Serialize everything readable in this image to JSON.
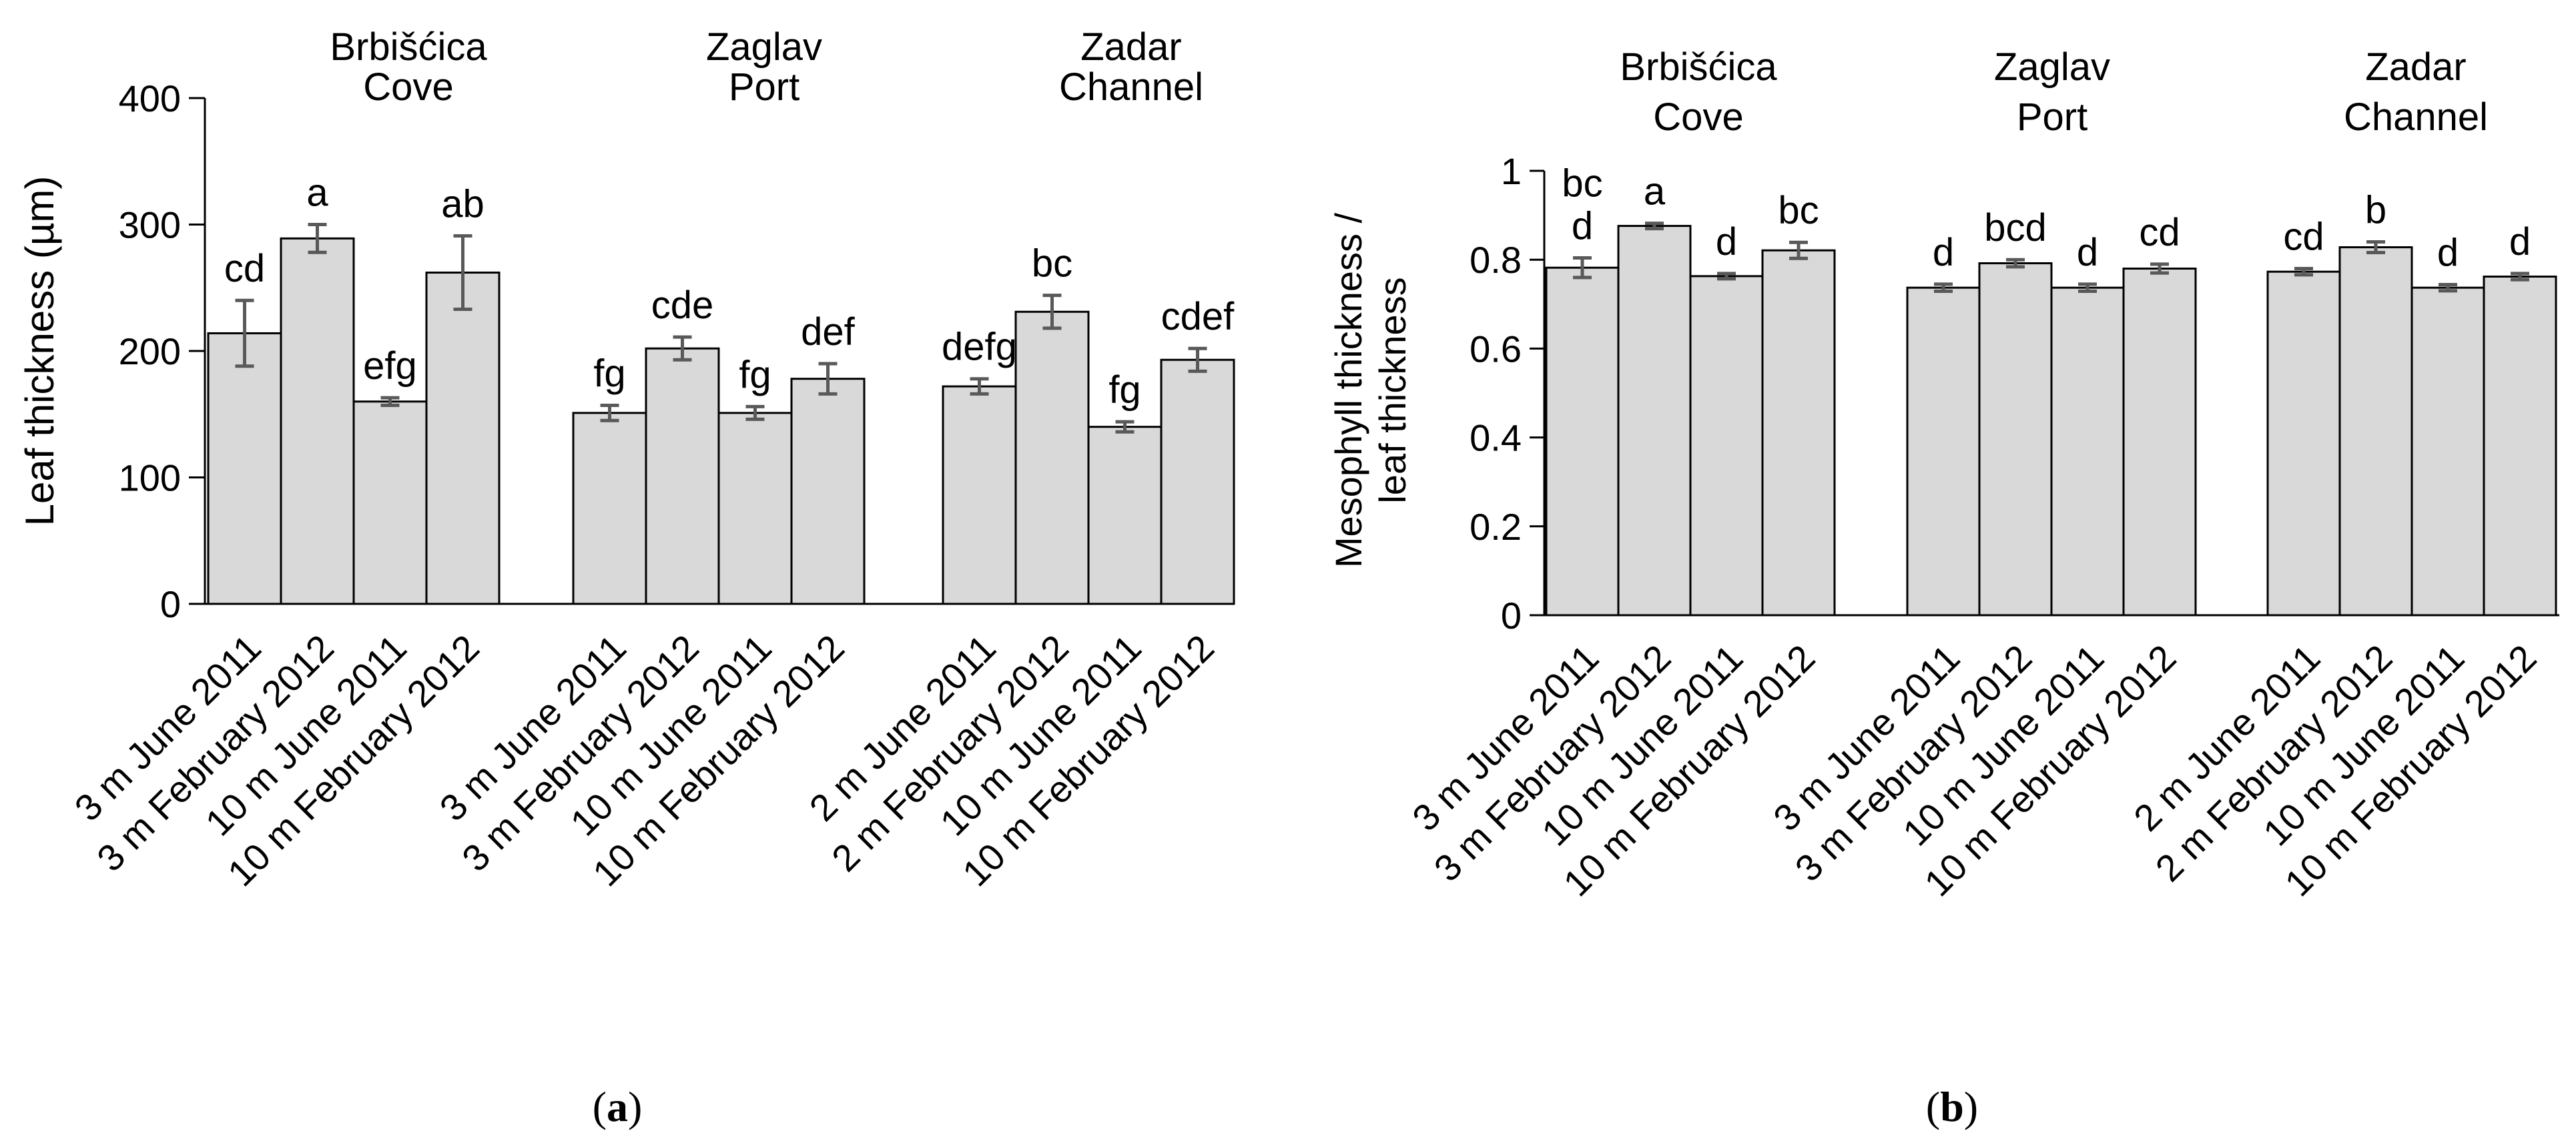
{
  "figure": {
    "panel_labels": [
      "(a)",
      "(b)"
    ],
    "panel_label_parts": [
      {
        "open": "(",
        "letter": "a",
        "close": ")"
      },
      {
        "open": "(",
        "letter": "b",
        "close": ")"
      }
    ]
  },
  "chart_data": [
    {
      "type": "bar",
      "ylabel": "Leaf thickness (µm)",
      "ylim": [
        0,
        400
      ],
      "yticks": [
        0,
        100,
        200,
        300,
        400
      ],
      "grid": false,
      "groups": [
        {
          "name": "Brbišćica Cove",
          "name_lines": [
            "Brbišćica",
            "Cove"
          ],
          "categories": [
            "3 m June 2011",
            "3 m February 2012",
            "10 m June 2011",
            "10 m February 2012"
          ],
          "values": [
            214,
            289,
            160,
            262
          ],
          "errors": [
            26,
            11,
            3,
            29
          ],
          "letters": [
            "cd",
            "a",
            "efg",
            "ab"
          ]
        },
        {
          "name": "Zaglav Port",
          "name_lines": [
            "Zaglav",
            "Port"
          ],
          "categories": [
            "3 m June 2011",
            "3 m February 2012",
            "10 m June 2011",
            "10 m February 2012"
          ],
          "values": [
            151,
            202,
            151,
            178
          ],
          "errors": [
            6,
            9,
            5,
            12
          ],
          "letters": [
            "fg",
            "cde",
            "fg",
            "def"
          ]
        },
        {
          "name": "Zadar Channel",
          "name_lines": [
            "Zadar",
            "Channel"
          ],
          "categories": [
            "2 m June 2011",
            "2 m February 2012",
            "10 m June 2011",
            "10 m February 2012"
          ],
          "values": [
            172,
            231,
            140,
            193
          ],
          "errors": [
            6,
            13,
            4,
            9
          ],
          "letters": [
            "defg",
            "bc",
            "fg",
            "cdef"
          ]
        }
      ]
    },
    {
      "type": "bar",
      "ylabel": "Mesophyll thickness / leaf thickness",
      "ylabel_lines": [
        "Mesophyll thickness /",
        "leaf thickness"
      ],
      "ylim": [
        0,
        1
      ],
      "yticks": [
        0,
        0.2,
        0.4,
        0.6,
        0.8,
        1
      ],
      "ytick_labels": [
        "0",
        "0.2",
        "0.4",
        "0.6",
        "0.8",
        "1"
      ],
      "grid": false,
      "groups": [
        {
          "name": "Brbišćica Cove",
          "name_lines": [
            "Brbišćica",
            "Cove"
          ],
          "categories": [
            "3 m June 2011",
            "3 m February 2012",
            "10 m June 2011",
            "10 m February 2012"
          ],
          "values": [
            0.782,
            0.876,
            0.763,
            0.821
          ],
          "errors": [
            0.022,
            0.006,
            0.006,
            0.018
          ],
          "letters": [
            "bc d",
            "a",
            "d",
            "bc"
          ],
          "letter_lines": [
            [
              "bc",
              "d"
            ],
            [
              "a"
            ],
            [
              "d"
            ],
            [
              "bc"
            ]
          ]
        },
        {
          "name": "Zaglav Port",
          "name_lines": [
            "Zaglav",
            "Port"
          ],
          "categories": [
            "3 m June 2011",
            "3 m February 2012",
            "10 m June 2011",
            "10 m February 2012"
          ],
          "values": [
            0.737,
            0.792,
            0.737,
            0.78
          ],
          "errors": [
            0.008,
            0.008,
            0.008,
            0.01
          ],
          "letters": [
            "d",
            "bcd",
            "d",
            "cd"
          ],
          "letter_lines": [
            [
              "d"
            ],
            [
              "bcd"
            ],
            [
              "d"
            ],
            [
              "cd"
            ]
          ]
        },
        {
          "name": "Zadar Channel",
          "name_lines": [
            "Zadar",
            "Channel"
          ],
          "categories": [
            "2 m June 2011",
            "2 m February 2012",
            "10 m June 2011",
            "10 m February 2012"
          ],
          "values": [
            0.773,
            0.828,
            0.737,
            0.762
          ],
          "errors": [
            0.007,
            0.012,
            0.007,
            0.007
          ],
          "letters": [
            "cd",
            "b",
            "d",
            "d"
          ],
          "letter_lines": [
            [
              "cd"
            ],
            [
              "b"
            ],
            [
              "d"
            ],
            [
              "d"
            ]
          ]
        }
      ]
    }
  ]
}
